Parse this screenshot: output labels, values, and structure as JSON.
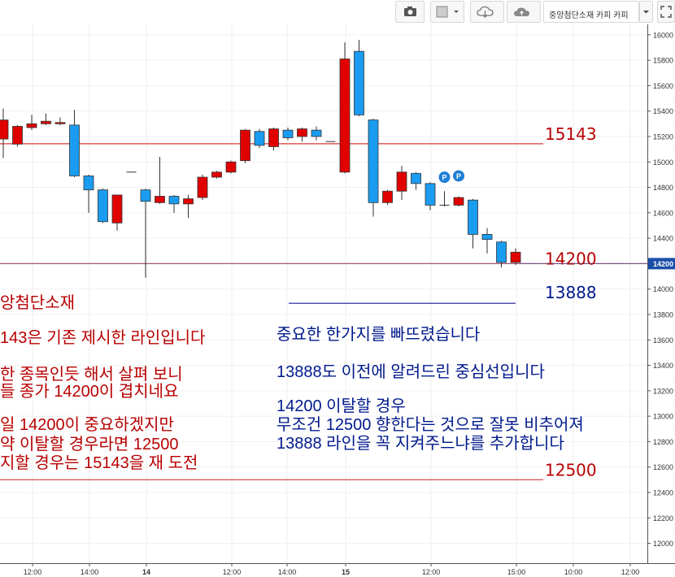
{
  "toolbar": {
    "symbol_label": "중앙첨단소재 카피 카피",
    "icons": [
      "camera-icon",
      "square-icon",
      "chevron-down-icon",
      "cloud-download-icon",
      "cloud-upload-icon",
      "dropdown-arrow-icon",
      "fullscreen-icon"
    ]
  },
  "colors": {
    "up": "#e00000",
    "down": "#1a9cf0",
    "red_line": "#d43a3a",
    "purple_line": "#a0557a",
    "blue_line": "#1a1a9c",
    "red_text": "#b80000",
    "navy_text": "#001a8c",
    "price_marker_bg": "#1a4fa8",
    "p_marker": "#1e7fd6"
  },
  "chart_data": {
    "type": "candlestick",
    "y_axis": {
      "min": 11850,
      "max": 16050,
      "ticks": [
        12000,
        12200,
        12400,
        12600,
        12800,
        13000,
        13200,
        13400,
        13600,
        13800,
        14000,
        14200,
        14400,
        14600,
        14800,
        15000,
        15200,
        15400,
        15600,
        15800,
        16000
      ],
      "current_price_label": "14200"
    },
    "x_axis": {
      "ticks": [
        {
          "label": "12:00",
          "bold": false
        },
        {
          "label": "14:00",
          "bold": false
        },
        {
          "label": "14",
          "bold": true
        },
        {
          "label": "12:00",
          "bold": false
        },
        {
          "label": "14:00",
          "bold": false
        },
        {
          "label": "15",
          "bold": true
        },
        {
          "label": "12:00",
          "bold": false
        },
        {
          "label": "15:00",
          "bold": false
        },
        {
          "label": "10:00",
          "bold": false
        },
        {
          "label": "12:00",
          "bold": false
        }
      ]
    },
    "candles": [
      {
        "o": 15180,
        "c": 15330,
        "h": 15420,
        "l": 15030
      },
      {
        "o": 15140,
        "c": 15280,
        "h": 15290,
        "l": 15120
      },
      {
        "o": 15270,
        "c": 15300,
        "h": 15370,
        "l": 15250
      },
      {
        "o": 15300,
        "c": 15320,
        "h": 15380,
        "l": 15290
      },
      {
        "o": 15300,
        "c": 15310,
        "h": 15350,
        "l": 15290
      },
      {
        "o": 15290,
        "c": 14890,
        "h": 15410,
        "l": 14880
      },
      {
        "o": 14890,
        "c": 14780,
        "h": 14900,
        "l": 14600
      },
      {
        "o": 14780,
        "c": 14530,
        "h": 14790,
        "l": 14520
      },
      {
        "o": 14520,
        "c": 14740,
        "h": 14740,
        "l": 14460
      },
      {
        "o": 14920,
        "c": 14920,
        "h": 14920,
        "l": 14920
      },
      {
        "o": 14780,
        "c": 14690,
        "h": 14790,
        "l": 14090
      },
      {
        "o": 14680,
        "c": 14730,
        "h": 15040,
        "l": 14670
      },
      {
        "o": 14730,
        "c": 14670,
        "h": 14740,
        "l": 14600
      },
      {
        "o": 14670,
        "c": 14710,
        "h": 14740,
        "l": 14560
      },
      {
        "o": 14720,
        "c": 14880,
        "h": 14900,
        "l": 14700
      },
      {
        "o": 14880,
        "c": 14920,
        "h": 14930,
        "l": 14870
      },
      {
        "o": 14920,
        "c": 15000,
        "h": 15010,
        "l": 14910
      },
      {
        "o": 15010,
        "c": 15250,
        "h": 15260,
        "l": 14990
      },
      {
        "o": 15240,
        "c": 15130,
        "h": 15260,
        "l": 15110
      },
      {
        "o": 15120,
        "c": 15260,
        "h": 15270,
        "l": 15090
      },
      {
        "o": 15250,
        "c": 15190,
        "h": 15270,
        "l": 15170
      },
      {
        "o": 15200,
        "c": 15260,
        "h": 15270,
        "l": 15160
      },
      {
        "o": 15250,
        "c": 15200,
        "h": 15280,
        "l": 15170
      },
      {
        "o": 15160,
        "c": 15160,
        "h": 15160,
        "l": 15160
      },
      {
        "o": 14920,
        "c": 15810,
        "h": 15940,
        "l": 14910
      },
      {
        "o": 15870,
        "c": 15370,
        "h": 15960,
        "l": 15360
      },
      {
        "o": 15330,
        "c": 14680,
        "h": 15340,
        "l": 14570
      },
      {
        "o": 14680,
        "c": 14770,
        "h": 14780,
        "l": 14660
      },
      {
        "o": 14770,
        "c": 14920,
        "h": 14970,
        "l": 14700
      },
      {
        "o": 14910,
        "c": 14830,
        "h": 14920,
        "l": 14780
      },
      {
        "o": 14830,
        "c": 14660,
        "h": 14840,
        "l": 14620
      },
      {
        "o": 14660,
        "c": 14660,
        "h": 14770,
        "l": 14650
      },
      {
        "o": 14660,
        "c": 14720,
        "h": 14730,
        "l": 14650
      },
      {
        "o": 14700,
        "c": 14430,
        "h": 14710,
        "l": 14320
      },
      {
        "o": 14430,
        "c": 14390,
        "h": 14480,
        "l": 14280
      },
      {
        "o": 14370,
        "c": 14210,
        "h": 14380,
        "l": 14170
      },
      {
        "o": 14210,
        "c": 14290,
        "h": 14320,
        "l": 14190
      }
    ],
    "horizontal_lines": [
      {
        "name": "line-15143",
        "value": 15143,
        "label": "15143",
        "color": "red"
      },
      {
        "name": "line-14200",
        "value": 14200,
        "label": "14200",
        "color": "purple"
      },
      {
        "name": "line-13888",
        "value": 13888,
        "label": "13888",
        "color": "blue"
      },
      {
        "name": "line-12500",
        "value": 12500,
        "label": "12500",
        "color": "red"
      }
    ],
    "p_markers": [
      {
        "label": "P",
        "value": 14880
      },
      {
        "label": "P",
        "value": 14890
      }
    ],
    "annotations_left": [
      "앙첨단소재",
      "143은 기존 제시한 라인입니다",
      "한 종목인듯 해서 살펴 보니",
      "들 종가 14200이 겹치네요",
      "일 14200이 중요하겠지만",
      "약 이탈할 경우라면 12500",
      "지할 경우는 15143을 재 도전"
    ],
    "annotations_right": [
      "중요한 한가지를 빠뜨렸습니다",
      "13888도 이전에 알려드린 중심선입니다",
      "14200 이탈할 경우",
      "무조건 12500 향한다는 것으로 잘못 비추어져",
      "13888 라인을 꼭 지켜주느냐를 추가합니다"
    ]
  }
}
